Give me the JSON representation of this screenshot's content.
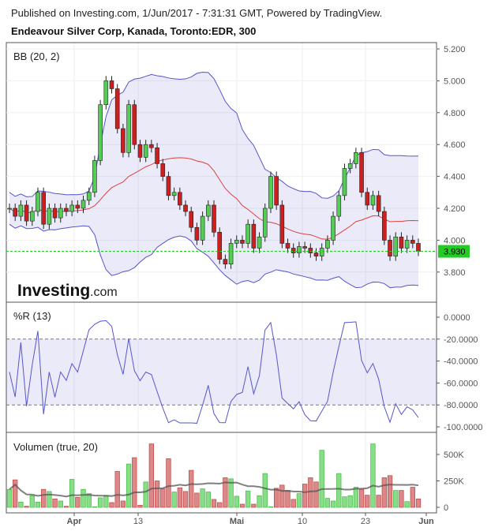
{
  "header": {
    "published": "Published on Investing.com, 1/Jun/2017 - 7:31:31 GMT, Powered by TradingView.",
    "title": "Endeavour Silver Corp, Kanada, Toronto:EDR, 300"
  },
  "logo": {
    "text": "Investing",
    "suffix": ".com"
  },
  "colors": {
    "up": "#2fa82f",
    "down": "#cc1f1f",
    "band": "#5555cc",
    "mid": "#e04040",
    "last": "#22cc22"
  },
  "chart_data": [
    {
      "type": "candlestick",
      "title": "BB (20, 2)",
      "ylim": [
        3.7,
        5.2
      ],
      "yticks": [
        "5.200",
        "5.000",
        "4.800",
        "4.600",
        "4.400",
        "4.200",
        "4.000",
        "3.800"
      ],
      "last_price": "3.930",
      "last_value": 3.93,
      "closes": [
        4.2,
        4.15,
        4.22,
        4.12,
        4.18,
        4.3,
        4.1,
        4.2,
        4.14,
        4.2,
        4.18,
        4.22,
        4.2,
        4.25,
        4.3,
        4.5,
        4.85,
        5.0,
        4.95,
        4.7,
        4.55,
        4.85,
        4.6,
        4.52,
        4.6,
        4.58,
        4.48,
        4.4,
        4.28,
        4.3,
        4.22,
        4.18,
        4.08,
        4.0,
        4.15,
        4.22,
        4.05,
        3.88,
        3.85,
        3.98,
        4.0,
        3.98,
        4.1,
        3.95,
        4.02,
        4.2,
        4.4,
        4.22,
        3.98,
        3.95,
        3.92,
        3.96,
        3.95,
        3.92,
        3.9,
        3.95,
        4.0,
        4.15,
        4.28,
        4.45,
        4.48,
        4.55,
        4.3,
        4.22,
        4.28,
        4.18,
        4.0,
        3.9,
        4.02,
        3.95,
        4.0,
        3.98,
        3.93
      ]
    },
    {
      "type": "line",
      "title": "%R (13)",
      "ylim": [
        -100,
        0
      ],
      "yticks": [
        "0.0000",
        "-20.0000",
        "-40.0000",
        "-60.0000",
        "-80.0000",
        "-100.0000"
      ],
      "tick_values": [
        0,
        -20,
        -40,
        -60,
        -80,
        -100
      ]
    },
    {
      "type": "bar",
      "title": "Volumen (true, 20)",
      "ylim": [
        0,
        600
      ],
      "yticks": [
        "500K",
        "250K",
        "0"
      ],
      "tick_values": [
        500,
        250,
        0
      ],
      "volumes": [
        170,
        260,
        50,
        10,
        110,
        50,
        170,
        150,
        80,
        60,
        10,
        265,
        95,
        170,
        130,
        5,
        90,
        110,
        45,
        340,
        60,
        410,
        470,
        20,
        240,
        600,
        250,
        175,
        460,
        145,
        185,
        150,
        350,
        135,
        175,
        145,
        75,
        45,
        280,
        270,
        105,
        30,
        155,
        30,
        110,
        320,
        5,
        180,
        210,
        160,
        75,
        130,
        220,
        280,
        240,
        540,
        85,
        60,
        320,
        100,
        110,
        190,
        170,
        115,
        600,
        115,
        280,
        300,
        160,
        160,
        55,
        190,
        80
      ]
    },
    {
      "type": "axis",
      "xticks": [
        "Apr",
        "13",
        "Mai",
        "10",
        "23",
        "Jun"
      ]
    }
  ]
}
